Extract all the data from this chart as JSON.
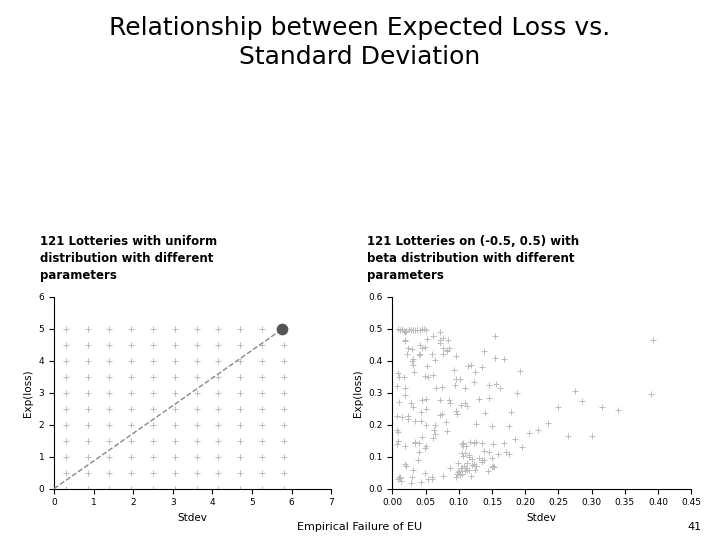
{
  "title_line1": "Relationship between Expected Loss vs.",
  "title_line2": "Standard Deviation",
  "title_fontsize": 18,
  "label_left_line1": "121 Lotteries with uniform",
  "label_left_line2": "distribution with different",
  "label_left_line3": "parameters",
  "label_right_line1": "121 Lotteries on (-0.5, 0.5) with",
  "label_right_line2": "beta distribution with different",
  "label_right_line3": "parameters",
  "label_fontsize": 8.5,
  "footer_text": "Empirical Failure of EU",
  "footer_num": "41",
  "footer_fontsize": 8,
  "bg_color": "#ffffff",
  "plot1": {
    "xlabel": "Stdev",
    "ylabel": "Exp(loss)",
    "xlim": [
      0,
      7
    ],
    "ylim": [
      0,
      6
    ],
    "xticks": [
      0,
      1,
      2,
      3,
      4,
      5,
      6,
      7
    ],
    "yticks": [
      0,
      1,
      2,
      3,
      4,
      5,
      6
    ],
    "marker_color": "#bbbbbb",
    "line_color": "#888888",
    "highlight_x": 5.77,
    "highlight_y": 5.0,
    "highlight_color": "#555555"
  },
  "plot2": {
    "xlabel": "Stdev",
    "ylabel": "Exp(loss)",
    "xlim": [
      0,
      0.45
    ],
    "ylim": [
      0,
      0.6
    ],
    "xticks": [
      0,
      0.05,
      0.1,
      0.15,
      0.2,
      0.25,
      0.3,
      0.35,
      0.4,
      0.45
    ],
    "yticks": [
      0,
      0.1,
      0.2,
      0.3,
      0.4,
      0.5,
      0.6
    ],
    "marker_color": "#bbbbbb",
    "highlight_color": "#555555"
  }
}
